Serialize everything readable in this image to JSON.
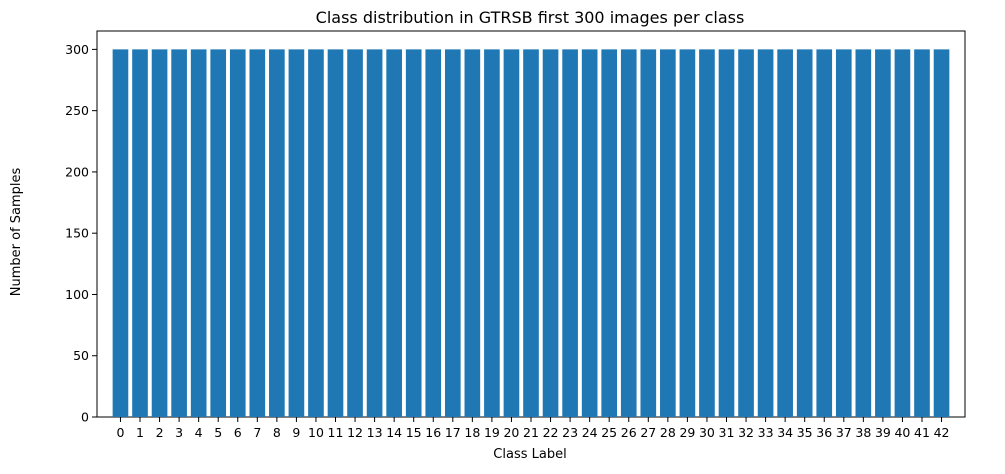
{
  "chart_data": {
    "type": "bar",
    "title": "Class distribution in GTRSB first 300 images per class",
    "xlabel": "Class Label",
    "ylabel": "Number of Samples",
    "categories": [
      "0",
      "1",
      "2",
      "3",
      "4",
      "5",
      "6",
      "7",
      "8",
      "9",
      "10",
      "11",
      "12",
      "13",
      "14",
      "15",
      "16",
      "17",
      "18",
      "19",
      "20",
      "21",
      "22",
      "23",
      "24",
      "25",
      "26",
      "27",
      "28",
      "29",
      "30",
      "31",
      "32",
      "33",
      "34",
      "35",
      "36",
      "37",
      "38",
      "39",
      "40",
      "41",
      "42"
    ],
    "values": [
      300,
      300,
      300,
      300,
      300,
      300,
      300,
      300,
      300,
      300,
      300,
      300,
      300,
      300,
      300,
      300,
      300,
      300,
      300,
      300,
      300,
      300,
      300,
      300,
      300,
      300,
      300,
      300,
      300,
      300,
      300,
      300,
      300,
      300,
      300,
      300,
      300,
      300,
      300,
      300,
      300,
      300,
      300
    ],
    "ylim": [
      0,
      315
    ],
    "yticks": [
      0,
      50,
      100,
      150,
      200,
      250,
      300
    ],
    "bar_color": "#1f77b4",
    "grid": false,
    "legend": "none"
  }
}
